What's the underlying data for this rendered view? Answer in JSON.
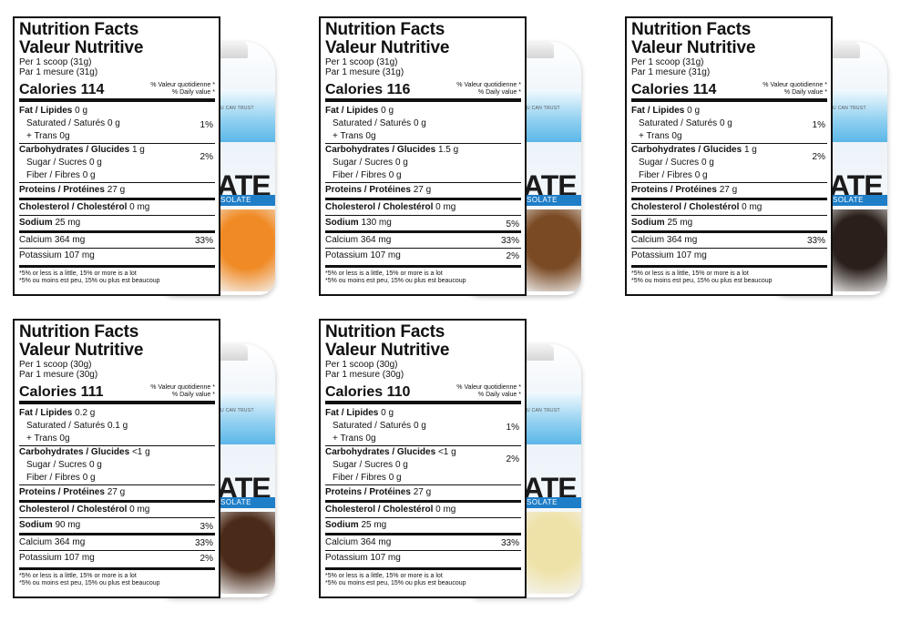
{
  "common": {
    "title_en": "Nutrition Facts",
    "title_fr": "Valeur Nutritive",
    "dv_header_fr": "% Valeur quotidienne *",
    "dv_header_en": "% Daily value *",
    "calories_label": "Calories",
    "fat_label": "Fat / Lipides",
    "saturated_label": "Saturated / Saturés",
    "trans_label": "+ Trans",
    "carb_label": "Carbohydrates / Glucides",
    "sugar_label": "Sugar / Sucres",
    "fiber_label": "Fiber / Fibres",
    "protein_label": "Proteins / Protéines",
    "cholesterol_label": "Cholesterol / Cholestérol",
    "sodium_label": "Sodium",
    "calcium_label": "Calcium",
    "potassium_label": "Potassium",
    "footnote_en": "*5% or less is a little, 15% or more is a lot",
    "footnote_fr": "*5% ou moins est peu, 15% ou plus est beaucoup",
    "bottle_brand": "ATE",
    "bottle_sub": "SOLATE",
    "bottle_tagline": "U CAN TRUST"
  },
  "labels": [
    {
      "serving_en": "Per 1 scoop (31g)",
      "serving_fr": "Par 1 mesure (31g)",
      "calories": "114",
      "fat": "0 g",
      "fat_dv": "1%",
      "saturated": "0 g",
      "trans": "0g",
      "carb": "1 g",
      "carb_dv": "2%",
      "sugar": "0 g",
      "fiber": "0 g",
      "protein": "27 g",
      "cholesterol": "0 mg",
      "sodium": "25 mg",
      "sodium_dv": "",
      "calcium": "364 mg",
      "calcium_dv": "33%",
      "potassium": "107 mg",
      "potassium_dv": "",
      "flavor_color": "#f08a24"
    },
    {
      "serving_en": "Per 1 scoop (31g)",
      "serving_fr": "Par 1 mesure (31g)",
      "calories": "116",
      "fat": "0 g",
      "fat_dv": "",
      "saturated": "0 g",
      "trans": "0g",
      "carb": "1.5 g",
      "carb_dv": "",
      "sugar": "0 g",
      "fiber": "0 g",
      "protein": "27 g",
      "cholesterol": "0 mg",
      "sodium": "130 mg",
      "sodium_dv": "5%",
      "calcium": "364 mg",
      "calcium_dv": "33%",
      "potassium": "107 mg",
      "potassium_dv": "2%",
      "flavor_color": "#7a4a24"
    },
    {
      "serving_en": "Per 1 scoop (31g)",
      "serving_fr": "Par 1 mesure (31g)",
      "calories": "114",
      "fat": "0 g",
      "fat_dv": "1%",
      "saturated": "0 g",
      "trans": "0g",
      "carb": "1 g",
      "carb_dv": "2%",
      "sugar": "0 g",
      "fiber": "0 g",
      "protein": "27 g",
      "cholesterol": "0 mg",
      "sodium": "25 mg",
      "sodium_dv": "",
      "calcium": "364 mg",
      "calcium_dv": "33%",
      "potassium": "107 mg",
      "potassium_dv": "",
      "flavor_color": "#2a1f1a"
    },
    {
      "serving_en": "Per 1 scoop (30g)",
      "serving_fr": "Par 1 mesure (30g)",
      "calories": "111",
      "fat": "0.2 g",
      "fat_dv": "",
      "saturated": "0.1 g",
      "trans": "0g",
      "carb": "<1 g",
      "carb_dv": "",
      "sugar": "0 g",
      "fiber": "0 g",
      "protein": "27 g",
      "cholesterol": "0 mg",
      "sodium": "90 mg",
      "sodium_dv": "3%",
      "calcium": "364 mg",
      "calcium_dv": "33%",
      "potassium": "107 mg",
      "potassium_dv": "2%",
      "flavor_color": "#4a2a18"
    },
    {
      "serving_en": "Per 1 scoop (30g)",
      "serving_fr": "Par 1 mesure (30g)",
      "calories": "110",
      "fat": "0 g",
      "fat_dv": "1%",
      "saturated": "0 g",
      "trans": "0g",
      "carb": "<1 g",
      "carb_dv": "2%",
      "sugar": "0 g",
      "fiber": "0 g",
      "protein": "27 g",
      "cholesterol": "0 mg",
      "sodium": "25 mg",
      "sodium_dv": "",
      "calcium": "364 mg",
      "calcium_dv": "33%",
      "potassium": "107 mg",
      "potassium_dv": "",
      "flavor_color": "#efe2a8"
    }
  ]
}
